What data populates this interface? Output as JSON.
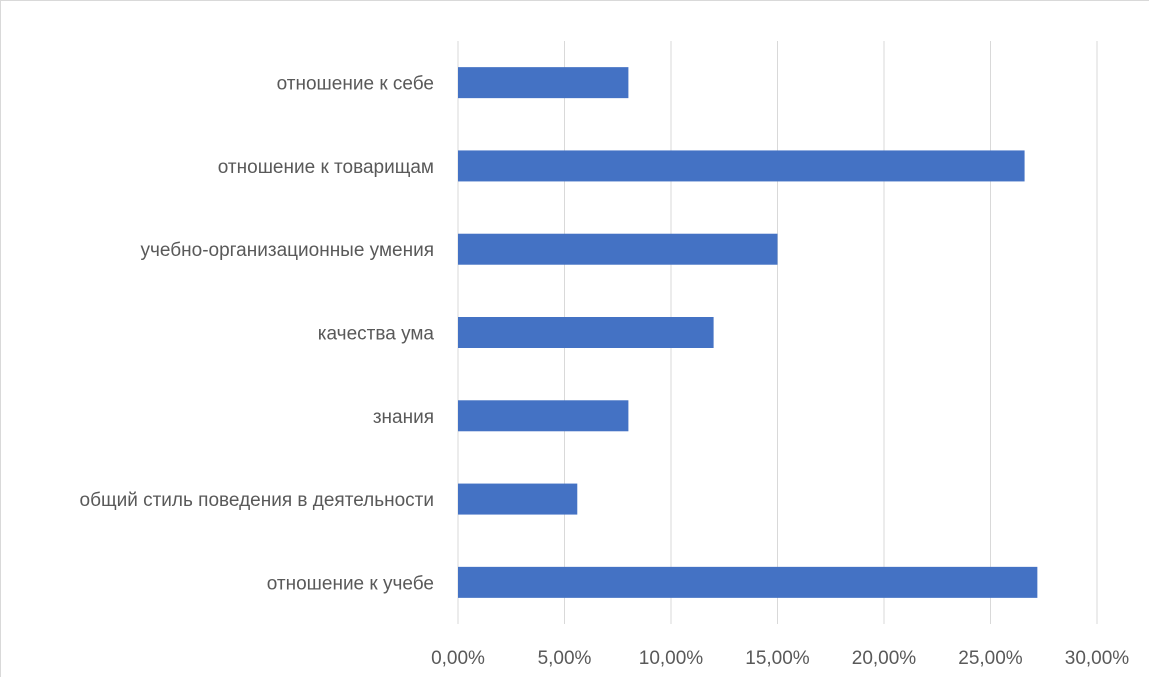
{
  "chart_data": {
    "type": "bar",
    "orientation": "horizontal",
    "categories": [
      "отношение к себе",
      "отношение к товарищам",
      "учебно-организационные умения",
      "качества ума",
      "знания",
      "общий стиль поведения в деятельности",
      "отношение к учебе"
    ],
    "values": [
      8.0,
      26.6,
      15.0,
      12.0,
      8.0,
      5.6,
      27.2
    ],
    "xlim": [
      0,
      30
    ],
    "xticks": [
      0,
      5,
      10,
      15,
      20,
      25,
      30
    ],
    "xtick_labels": [
      "0,00%",
      "5,00%",
      "10,00%",
      "15,00%",
      "20,00%",
      "25,00%",
      "30,00%"
    ],
    "grid": true,
    "bar_color": "#4472c4",
    "grid_color": "#d9d9d9",
    "title": "",
    "xlabel": "",
    "ylabel": ""
  }
}
